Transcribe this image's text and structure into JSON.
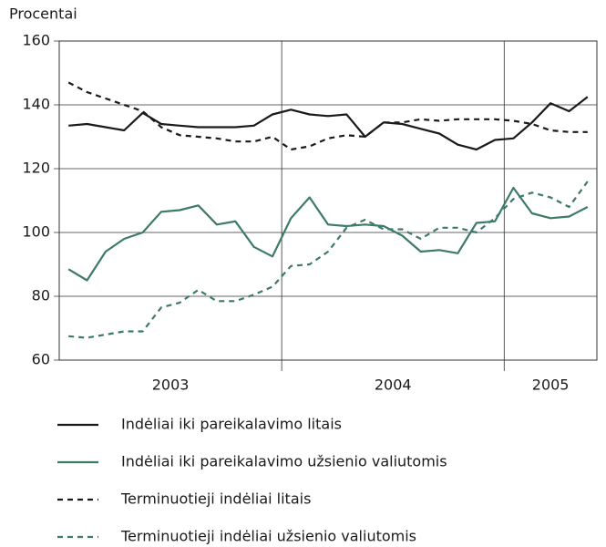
{
  "chart_data": {
    "type": "line",
    "ylabel": "Procentai",
    "categories": [
      "2003",
      null,
      null,
      null,
      null,
      null,
      null,
      null,
      null,
      null,
      null,
      null,
      "2004",
      null,
      null,
      null,
      null,
      null,
      null,
      null,
      null,
      null,
      null,
      null,
      "2005",
      null,
      null,
      null,
      null
    ],
    "ylim": [
      60,
      160
    ],
    "yticks": [
      60,
      80,
      100,
      120,
      140,
      160
    ],
    "grid": true,
    "series": [
      {
        "name": "Indėliai iki pareikalavimo litais",
        "color": "#1a1a1a",
        "dash": false,
        "values": [
          133.5,
          134,
          133,
          132,
          137.5,
          134,
          133.5,
          133,
          133,
          133,
          133.5,
          137,
          138.5,
          137,
          136.5,
          137,
          130,
          134.5,
          134,
          132.5,
          131,
          127.5,
          126,
          129,
          129.5,
          134.5,
          140.5,
          138,
          142.5
        ]
      },
      {
        "name": "Indėliai iki pareikalavimo užsienio valiutomis",
        "color": "#3d7a6a",
        "dash": false,
        "values": [
          88.5,
          85,
          94,
          98,
          100,
          106.5,
          107,
          108.5,
          102.5,
          103.5,
          95.5,
          92.5,
          104.5,
          111,
          102.5,
          102,
          102.5,
          102,
          99,
          94,
          94.5,
          93.5,
          103,
          103.5,
          114,
          106,
          104.5,
          105,
          108
        ]
      },
      {
        "name": "Terminuotieji indėliai litais",
        "color": "#1a1a1a",
        "dash": true,
        "values": [
          147,
          144,
          142,
          140,
          138,
          133,
          130.5,
          130,
          129.5,
          128.5,
          128.5,
          130,
          126,
          127,
          129.5,
          130.5,
          130,
          134.5,
          134.5,
          135.5,
          135,
          135.5,
          135.5,
          135.5,
          135,
          134,
          132,
          131.5,
          131.5
        ]
      },
      {
        "name": "Terminuotieji indėliai užsienio valiutomis",
        "color": "#3d7a6a",
        "dash": true,
        "values": [
          67.5,
          67,
          68,
          69,
          69,
          76.5,
          78,
          82,
          78.5,
          78.5,
          80.5,
          83,
          89.5,
          90,
          94,
          101.5,
          104,
          101,
          101,
          98,
          101.5,
          101.5,
          100,
          104.5,
          110.5,
          112.5,
          111,
          108,
          116
        ]
      }
    ]
  }
}
